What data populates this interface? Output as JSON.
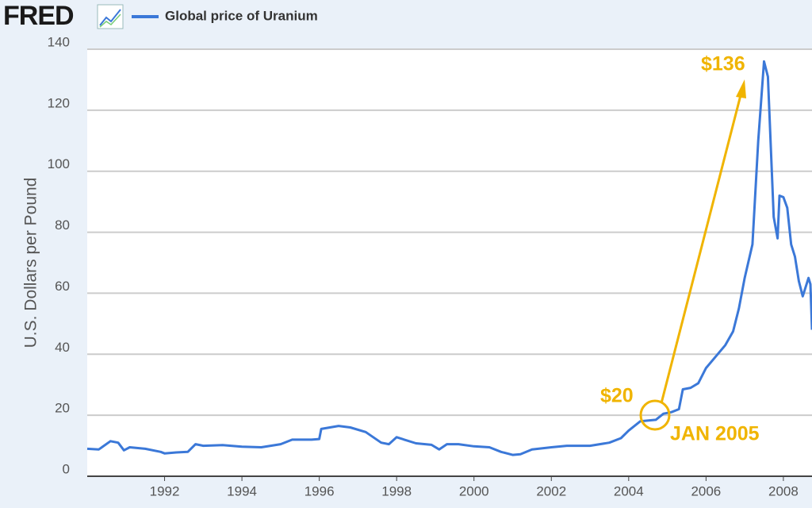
{
  "chart_data": {
    "type": "line",
    "logo": "FRED",
    "ylabel": "U.S. Dollars per Pound",
    "x": [
      1990.0,
      1990.3,
      1990.6,
      1990.8,
      1990.95,
      1991.1,
      1991.5,
      1991.9,
      1992.0,
      1992.3,
      1992.6,
      1992.8,
      1993.0,
      1993.5,
      1994.0,
      1994.5,
      1995.0,
      1995.3,
      1995.8,
      1996.0,
      1996.05,
      1996.5,
      1996.8,
      1997.2,
      1997.6,
      1997.8,
      1998.0,
      1998.2,
      1998.5,
      1998.9,
      1999.1,
      1999.3,
      1999.6,
      2000.0,
      2000.4,
      2000.7,
      2001.0,
      2001.2,
      2001.5,
      2002.0,
      2002.4,
      2003.0,
      2003.5,
      2003.8,
      2004.0,
      2004.3,
      2004.7,
      2004.9,
      2005.1,
      2005.3,
      2005.4,
      2005.6,
      2005.8,
      2006.0,
      2006.3,
      2006.5,
      2006.7,
      2006.85,
      2007.0,
      2007.2,
      2007.35,
      2007.5,
      2007.6,
      2007.75,
      2007.85,
      2007.9,
      2008.0,
      2008.1,
      2008.2,
      2008.3,
      2008.4,
      2008.5,
      2008.65,
      2008.7,
      2008.74
    ],
    "series": [
      {
        "name": "Global price of Uranium",
        "color": "#3b78d8",
        "values": [
          9,
          8.8,
          11.5,
          11,
          8.5,
          9.5,
          9,
          8,
          7.5,
          7.8,
          8,
          10.5,
          10,
          10.2,
          9.7,
          9.5,
          10.5,
          12,
          12,
          12.2,
          15.5,
          16.5,
          16,
          14.5,
          11,
          10.5,
          12.8,
          12,
          10.8,
          10.3,
          8.8,
          10.5,
          10.5,
          9.8,
          9.5,
          8,
          7,
          7.2,
          8.8,
          9.5,
          10,
          10,
          11,
          12.5,
          15,
          18,
          18.5,
          20.5,
          21,
          22,
          28.5,
          29,
          30.5,
          35.5,
          40,
          43,
          47.5,
          55,
          65,
          76,
          110,
          136,
          131,
          85,
          78,
          92,
          91.5,
          88,
          76,
          72,
          64,
          59,
          65,
          63,
          48
        ]
      }
    ],
    "xlim": [
      1990.0,
      2008.74
    ],
    "xticks": [
      1992,
      1994,
      1996,
      1998,
      2000,
      2002,
      2004,
      2006,
      2008
    ],
    "ylim": [
      0,
      140
    ],
    "yticks": [
      0,
      20,
      40,
      60,
      80,
      100,
      120,
      140
    ],
    "grid": true,
    "annotations": [
      "$136",
      "$20",
      "JAN 2005"
    ],
    "annotation_color": "#f0b400"
  }
}
